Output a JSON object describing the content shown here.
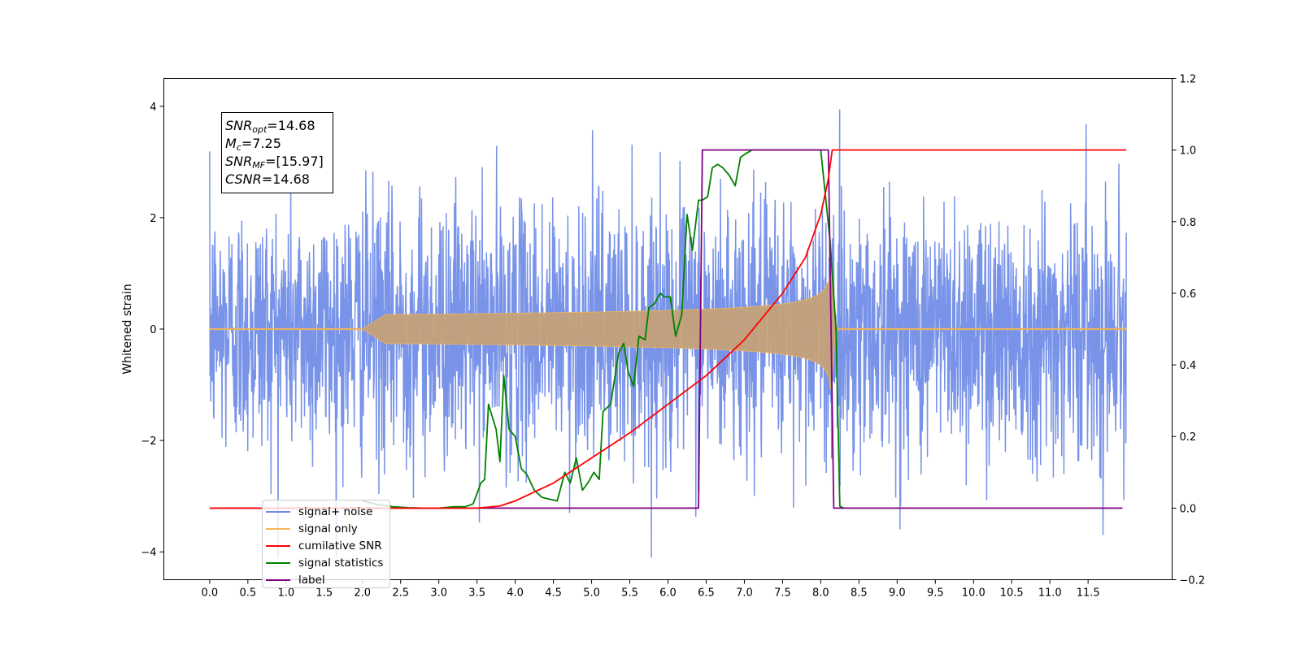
{
  "chart_data": {
    "type": "line",
    "ylabel_left": "Whitened strain",
    "ylim_left": [
      -4.5,
      4.5
    ],
    "yticks_left": [
      "−4",
      "−2",
      "0",
      "2",
      "4"
    ],
    "ylim_right": [
      -0.2,
      1.2
    ],
    "yticks_right": [
      "−0.2",
      "0.0",
      "0.2",
      "0.4",
      "0.6",
      "0.8",
      "1.0",
      "1.2"
    ],
    "xlim": [
      -0.6,
      12.6
    ],
    "xticks": [
      "0.0",
      "0.5",
      "1.0",
      "1.5",
      "2.0",
      "2.5",
      "3.0",
      "3.5",
      "4.0",
      "4.5",
      "5.0",
      "5.5",
      "6.0",
      "6.5",
      "7.0",
      "7.5",
      "8.0",
      "8.5",
      "9.0",
      "9.5",
      "10.0",
      "10.5",
      "11.0",
      "11.5"
    ],
    "grid": false,
    "legend_position": "lower-left",
    "annotation": {
      "snr_opt": "14.68",
      "mc": "7.25",
      "snr_mf": "[15.97]",
      "csnr": "14.68"
    },
    "series": [
      {
        "name": "signal+ noise",
        "axis": "left",
        "color": "#6d8ae6",
        "x_range": [
          0.0,
          12.0
        ],
        "amplitude_std": 1.0,
        "approx_range": [
          -4.1,
          4.1
        ]
      },
      {
        "name": "signal only",
        "axis": "left",
        "color": "#f4b75a",
        "chirp_start": 2.0,
        "merger_time": 8.15,
        "x_range": [
          0.0,
          12.0
        ],
        "peak_amplitude": 1.2
      },
      {
        "name": "cumilative SNR",
        "axis": "right",
        "color": "#ff0000",
        "x": [
          0.0,
          3.5,
          3.8,
          4.0,
          4.5,
          5.0,
          5.5,
          6.0,
          6.5,
          7.0,
          7.5,
          7.8,
          8.0,
          8.1,
          8.15,
          12.0
        ],
        "y": [
          0.0,
          0.0,
          0.006,
          0.02,
          0.07,
          0.14,
          0.21,
          0.29,
          0.37,
          0.47,
          0.6,
          0.7,
          0.82,
          0.92,
          1.0,
          1.0
        ]
      },
      {
        "name": "signal statistics",
        "axis": "right",
        "color": "#008000",
        "x": [
          2.0,
          2.2,
          2.4,
          2.6,
          2.8,
          3.0,
          3.2,
          3.35,
          3.45,
          3.55,
          3.6,
          3.65,
          3.75,
          3.8,
          3.85,
          3.92,
          4.0,
          4.08,
          4.15,
          4.25,
          4.35,
          4.45,
          4.55,
          4.65,
          4.72,
          4.8,
          4.88,
          4.95,
          5.03,
          5.1,
          5.15,
          5.25,
          5.35,
          5.42,
          5.48,
          5.55,
          5.62,
          5.7,
          5.75,
          5.82,
          5.9,
          5.95,
          6.03,
          6.1,
          6.18,
          6.25,
          6.32,
          6.4,
          6.45,
          6.52,
          6.58,
          6.65,
          6.72,
          6.8,
          6.88,
          6.95,
          7.02,
          7.1,
          7.3,
          7.5,
          7.8,
          8.0,
          8.12,
          8.2,
          8.25,
          8.3
        ],
        "y": [
          0.02,
          0.01,
          0.004,
          0.001,
          0.0,
          0.0,
          0.004,
          0.004,
          0.012,
          0.07,
          0.08,
          0.29,
          0.22,
          0.13,
          0.37,
          0.22,
          0.2,
          0.11,
          0.095,
          0.05,
          0.03,
          0.025,
          0.02,
          0.1,
          0.07,
          0.14,
          0.05,
          0.07,
          0.1,
          0.08,
          0.27,
          0.29,
          0.43,
          0.46,
          0.38,
          0.34,
          0.48,
          0.47,
          0.56,
          0.57,
          0.6,
          0.59,
          0.59,
          0.48,
          0.54,
          0.82,
          0.72,
          0.86,
          0.86,
          0.87,
          0.95,
          0.96,
          0.95,
          0.93,
          0.9,
          0.98,
          0.99,
          1.0,
          1.0,
          1.0,
          1.0,
          1.0,
          0.75,
          0.5,
          0.005,
          0.0
        ]
      },
      {
        "name": "label",
        "axis": "right",
        "color": "#800080",
        "x": [
          0.0,
          6.4,
          6.45,
          8.1,
          8.17,
          11.95
        ],
        "y": [
          0.0,
          0.0,
          1.0,
          1.0,
          0.0,
          0.0
        ]
      }
    ]
  }
}
